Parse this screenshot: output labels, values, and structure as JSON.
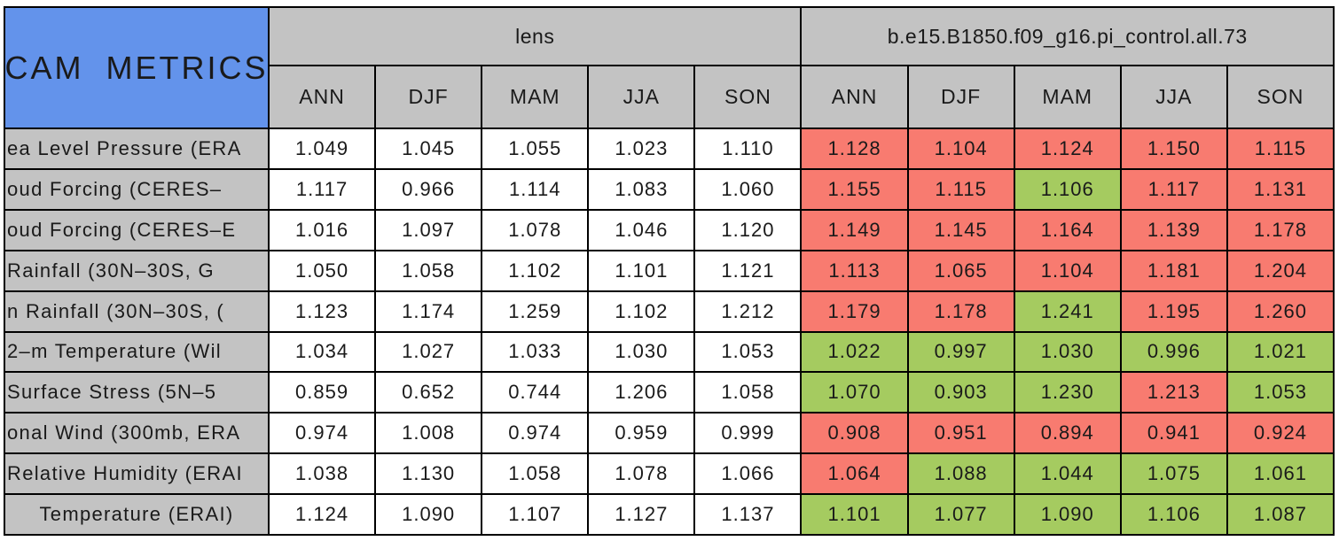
{
  "colors": {
    "css": {
      "blue": "#6393EB",
      "gray": "#C3C3C3",
      "red": "#F87B70",
      "green": "#A5CB60",
      "border": "#000000",
      "page_bg": "#FFFFFF",
      "cell_white": "#FFFFFF",
      "text": "#1A1A1A"
    }
  },
  "chart_data": {
    "type": "table",
    "title": "CAM METRICS",
    "groups": [
      {
        "label": "lens",
        "seasons": [
          "ANN",
          "DJF",
          "MAM",
          "JJA",
          "SON"
        ]
      },
      {
        "label": "b.e15.B1850.f09_g16.pi_control.all.73",
        "seasons": [
          "ANN",
          "DJF",
          "MAM",
          "JJA",
          "SON"
        ]
      }
    ],
    "rows": [
      {
        "label": "ea Level Pressure (ERA",
        "centered": false,
        "lens": [
          "1.049",
          "1.045",
          "1.055",
          "1.023",
          "1.110"
        ],
        "control": [
          "1.128",
          "1.104",
          "1.124",
          "1.150",
          "1.115"
        ],
        "control_colors": [
          "red",
          "red",
          "red",
          "red",
          "red"
        ]
      },
      {
        "label": "oud Forcing (CERES–",
        "centered": false,
        "lens": [
          "1.117",
          "0.966",
          "1.114",
          "1.083",
          "1.060"
        ],
        "control": [
          "1.155",
          "1.115",
          "1.106",
          "1.117",
          "1.131"
        ],
        "control_colors": [
          "red",
          "red",
          "green",
          "red",
          "red"
        ]
      },
      {
        "label": "oud Forcing (CERES–E",
        "centered": false,
        "lens": [
          "1.016",
          "1.097",
          "1.078",
          "1.046",
          "1.120"
        ],
        "control": [
          "1.149",
          "1.145",
          "1.164",
          "1.139",
          "1.178"
        ],
        "control_colors": [
          "red",
          "red",
          "red",
          "red",
          "red"
        ]
      },
      {
        "label": "Rainfall (30N–30S, G",
        "centered": false,
        "lens": [
          "1.050",
          "1.058",
          "1.102",
          "1.101",
          "1.121"
        ],
        "control": [
          "1.113",
          "1.065",
          "1.104",
          "1.181",
          "1.204"
        ],
        "control_colors": [
          "red",
          "red",
          "red",
          "red",
          "red"
        ]
      },
      {
        "label": "n Rainfall (30N–30S, (",
        "centered": false,
        "lens": [
          "1.123",
          "1.174",
          "1.259",
          "1.102",
          "1.212"
        ],
        "control": [
          "1.179",
          "1.178",
          "1.241",
          "1.195",
          "1.260"
        ],
        "control_colors": [
          "red",
          "red",
          "green",
          "red",
          "red"
        ]
      },
      {
        "label": "2–m Temperature (Wil",
        "centered": false,
        "lens": [
          "1.034",
          "1.027",
          "1.033",
          "1.030",
          "1.053"
        ],
        "control": [
          "1.022",
          "0.997",
          "1.030",
          "0.996",
          "1.021"
        ],
        "control_colors": [
          "green",
          "green",
          "green",
          "green",
          "green"
        ]
      },
      {
        "label": "Surface Stress (5N–5",
        "centered": false,
        "lens": [
          "0.859",
          "0.652",
          "0.744",
          "1.206",
          "1.058"
        ],
        "control": [
          "1.070",
          "0.903",
          "1.230",
          "1.213",
          "1.053"
        ],
        "control_colors": [
          "green",
          "green",
          "green",
          "red",
          "green"
        ]
      },
      {
        "label": "onal Wind (300mb, ERA",
        "centered": false,
        "lens": [
          "0.974",
          "1.008",
          "0.974",
          "0.959",
          "0.999"
        ],
        "control": [
          "0.908",
          "0.951",
          "0.894",
          "0.941",
          "0.924"
        ],
        "control_colors": [
          "red",
          "red",
          "red",
          "red",
          "red"
        ]
      },
      {
        "label": "Relative Humidity (ERAI",
        "centered": false,
        "lens": [
          "1.038",
          "1.130",
          "1.058",
          "1.078",
          "1.066"
        ],
        "control": [
          "1.064",
          "1.088",
          "1.044",
          "1.075",
          "1.061"
        ],
        "control_colors": [
          "red",
          "green",
          "green",
          "green",
          "green"
        ]
      },
      {
        "label": "Temperature (ERAI)",
        "centered": true,
        "lens": [
          "1.124",
          "1.090",
          "1.107",
          "1.127",
          "1.137"
        ],
        "control": [
          "1.101",
          "1.077",
          "1.090",
          "1.106",
          "1.087"
        ],
        "control_colors": [
          "green",
          "green",
          "green",
          "green",
          "green"
        ]
      }
    ]
  }
}
